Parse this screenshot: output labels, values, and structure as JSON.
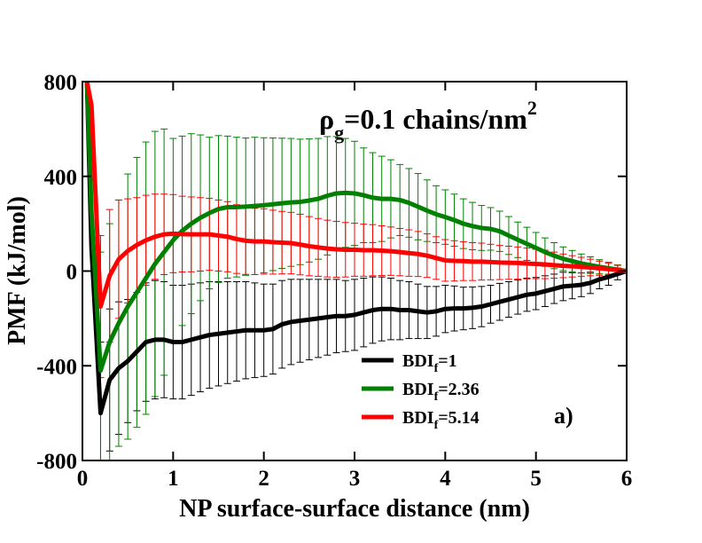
{
  "chart_data": {
    "type": "line",
    "xlabel": "NP surface-surface distance (nm)",
    "ylabel": "PMF (kJ/mol)",
    "xlim": [
      0,
      6
    ],
    "ylim": [
      -800,
      800
    ],
    "xticks": [
      0,
      1,
      2,
      3,
      4,
      5,
      6
    ],
    "yticks": [
      -800,
      -400,
      0,
      400,
      800
    ],
    "legend": "lower center",
    "annotations": [
      {
        "parts": {
          "base": "ρ",
          "sub": "g",
          "rest": "=0.1 chains/nm",
          "sup": "2"
        }
      },
      {
        "text": "a)"
      }
    ],
    "x": [
      0.05,
      0.1,
      0.2,
      0.3,
      0.4,
      0.5,
      0.6,
      0.7,
      0.8,
      0.9,
      1.0,
      1.1,
      1.2,
      1.3,
      1.4,
      1.5,
      1.6,
      1.7,
      1.8,
      1.9,
      2.0,
      2.1,
      2.2,
      2.3,
      2.4,
      2.5,
      2.6,
      2.7,
      2.8,
      2.9,
      3.0,
      3.1,
      3.2,
      3.3,
      3.4,
      3.5,
      3.6,
      3.7,
      3.8,
      3.9,
      4.0,
      4.1,
      4.2,
      4.3,
      4.4,
      4.5,
      4.6,
      4.7,
      4.8,
      4.9,
      5.0,
      5.1,
      5.2,
      5.3,
      5.4,
      5.5,
      5.6,
      5.7,
      5.8,
      5.9,
      6.0
    ],
    "series": [
      {
        "name": {
          "base": "BDI",
          "sub": "f",
          "rest": "=1"
        },
        "color": "#000000",
        "values": [
          800,
          100,
          -600,
          -460,
          -410,
          -380,
          -340,
          -300,
          -290,
          -290,
          -300,
          -300,
          -290,
          -280,
          -270,
          -265,
          -260,
          -255,
          -250,
          -250,
          -250,
          -245,
          -225,
          -215,
          -210,
          -205,
          -200,
          -195,
          -190,
          -190,
          -185,
          -175,
          -165,
          -160,
          -160,
          -165,
          -165,
          -170,
          -175,
          -170,
          -160,
          -158,
          -158,
          -155,
          -150,
          -140,
          -130,
          -120,
          -110,
          -100,
          -95,
          -85,
          -75,
          -65,
          -62,
          -58,
          -50,
          -35,
          -25,
          -12,
          0
        ],
        "errors": [
          null,
          null,
          300,
          300,
          280,
          260,
          250,
          250,
          250,
          245,
          240,
          240,
          235,
          230,
          225,
          220,
          215,
          210,
          205,
          200,
          195,
          190,
          185,
          180,
          175,
          170,
          165,
          160,
          155,
          150,
          150,
          145,
          140,
          135,
          130,
          125,
          120,
          115,
          110,
          105,
          100,
          95,
          90,
          88,
          85,
          80,
          78,
          75,
          72,
          70,
          68,
          65,
          62,
          60,
          55,
          50,
          45,
          40,
          35,
          25,
          null
        ]
      },
      {
        "name": {
          "base": "BDI",
          "sub": "f",
          "rest": "=2.36"
        },
        "color": "#008000",
        "values": [
          800,
          250,
          -420,
          -300,
          -220,
          -150,
          -90,
          -30,
          30,
          80,
          130,
          170,
          200,
          225,
          245,
          262,
          270,
          270,
          272,
          275,
          278,
          282,
          286,
          290,
          292,
          298,
          305,
          318,
          328,
          330,
          328,
          320,
          310,
          305,
          305,
          300,
          288,
          272,
          255,
          240,
          228,
          215,
          200,
          190,
          182,
          178,
          168,
          150,
          132,
          115,
          98,
          80,
          65,
          52,
          42,
          32,
          25,
          18,
          12,
          6,
          0
        ],
        "errors": [
          null,
          null,
          500,
          500,
          520,
          560,
          570,
          575,
          560,
          520,
          430,
          400,
          380,
          350,
          320,
          310,
          300,
          295,
          290,
          290,
          285,
          280,
          275,
          270,
          265,
          260,
          255,
          250,
          240,
          230,
          220,
          200,
          190,
          180,
          165,
          150,
          145,
          140,
          130,
          120,
          115,
          110,
          105,
          100,
          95,
          90,
          85,
          80,
          75,
          70,
          65,
          60,
          55,
          50,
          45,
          40,
          35,
          30,
          25,
          20,
          null
        ]
      },
      {
        "name": {
          "base": "BDI",
          "sub": "f",
          "rest": "=5.14"
        },
        "color": "#ff0000",
        "values": [
          800,
          700,
          -150,
          -20,
          50,
          85,
          110,
          130,
          145,
          155,
          158,
          156,
          155,
          155,
          155,
          150,
          145,
          135,
          128,
          125,
          125,
          122,
          120,
          118,
          112,
          105,
          100,
          95,
          92,
          90,
          90,
          88,
          88,
          86,
          84,
          80,
          76,
          72,
          65,
          55,
          45,
          43,
          42,
          40,
          40,
          38,
          36,
          35,
          34,
          32,
          30,
          28,
          25,
          22,
          20,
          18,
          15,
          12,
          8,
          4,
          0
        ],
        "errors": [
          null,
          null,
          300,
          280,
          250,
          220,
          200,
          190,
          180,
          170,
          165,
          160,
          158,
          155,
          152,
          150,
          148,
          145,
          142,
          140,
          138,
          135,
          132,
          130,
          128,
          125,
          122,
          120,
          118,
          115,
          112,
          110,
          108,
          105,
          102,
          100,
          98,
          95,
          92,
          90,
          88,
          85,
          82,
          80,
          78,
          75,
          72,
          70,
          68,
          65,
          62,
          60,
          55,
          50,
          45,
          40,
          35,
          30,
          25,
          20,
          null
        ]
      }
    ]
  }
}
